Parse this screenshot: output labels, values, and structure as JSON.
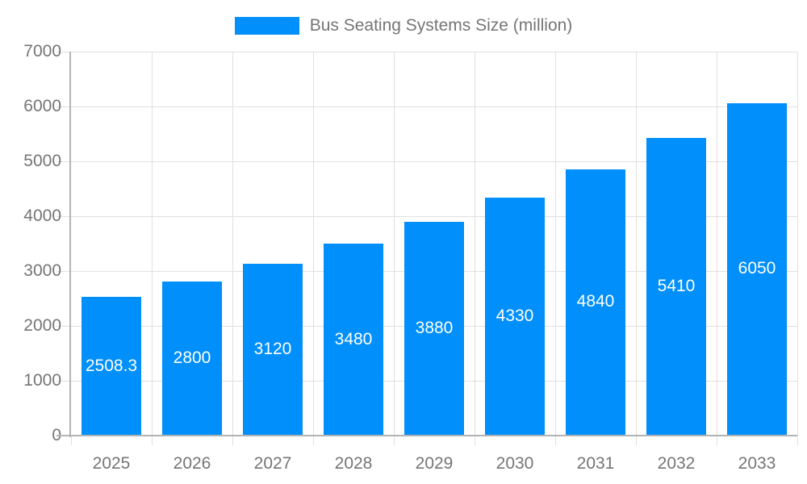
{
  "colors": {
    "bar": "#008FFB",
    "grid": "#e0e0e0",
    "axis_line": "#b3b3b3",
    "axis_text": "#757575",
    "value_label": "#ffffff",
    "background": "#ffffff"
  },
  "legend": {
    "label": "Bus Seating Systems Size (million)"
  },
  "chart_data": {
    "type": "bar",
    "title": "Bus Seating Systems Size (million)",
    "categories": [
      "2025",
      "2026",
      "2027",
      "2028",
      "2029",
      "2030",
      "2031",
      "2032",
      "2033"
    ],
    "values": [
      2508.3,
      2800,
      3120,
      3480,
      3880,
      4330,
      4840,
      5410,
      6050
    ],
    "value_labels": [
      "2508.3",
      "2800",
      "3120",
      "3480",
      "3880",
      "4330",
      "4840",
      "5410",
      "6050"
    ],
    "series_name": "Bus Seating Systems Size (million)",
    "xlabel": "",
    "ylabel": "",
    "ylim": [
      0,
      7000
    ],
    "y_ticks": [
      0,
      1000,
      2000,
      3000,
      4000,
      5000,
      6000,
      7000
    ],
    "y_tick_labels": [
      "0",
      "1000",
      "2000",
      "3000",
      "4000",
      "5000",
      "6000",
      "7000"
    ],
    "grid": "on",
    "legend_position": "top-center",
    "value_label_position": "inside-middle"
  }
}
